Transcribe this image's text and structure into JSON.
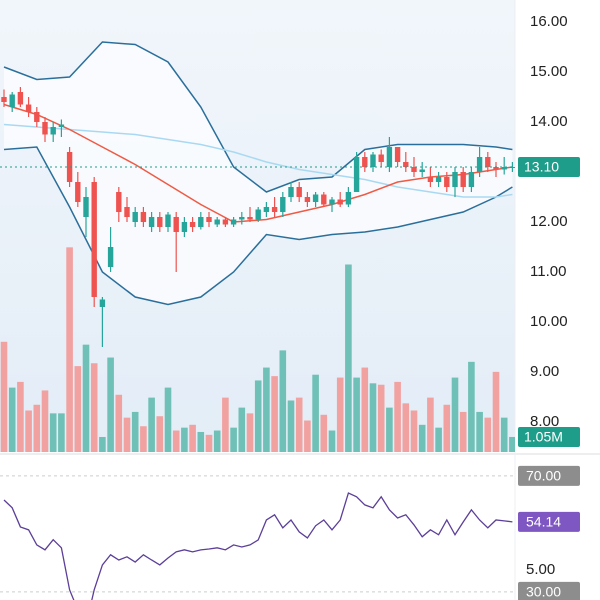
{
  "chart_data": [
    {
      "type": "candlestick",
      "ylim": [
        7.4,
        16.44
      ],
      "yticks": [
        {
          "value": 16,
          "label": "16.00"
        },
        {
          "value": 15,
          "label": "15.00"
        },
        {
          "value": 14,
          "label": "14.00"
        },
        {
          "value": 12,
          "label": "12.00"
        },
        {
          "value": 11,
          "label": "11.00"
        },
        {
          "value": 10,
          "label": "10.00"
        },
        {
          "value": 9,
          "label": "9.00"
        },
        {
          "value": 8,
          "label": "8.00"
        }
      ],
      "up_color": "#26a69a",
      "down_color": "#ef5350",
      "ohlc": [
        [
          14.5,
          14.65,
          14.3,
          14.4
        ],
        [
          14.3,
          14.6,
          14.2,
          14.55
        ],
        [
          14.6,
          14.7,
          14.3,
          14.35
        ],
        [
          14.35,
          14.5,
          14.1,
          14.2
        ],
        [
          14.2,
          14.3,
          13.9,
          14.0
        ],
        [
          14.0,
          14.1,
          13.6,
          13.75
        ],
        [
          13.75,
          14.0,
          13.6,
          13.9
        ],
        [
          13.9,
          14.05,
          13.7,
          13.95
        ],
        [
          13.4,
          13.5,
          12.7,
          12.8
        ],
        [
          12.8,
          13.0,
          12.3,
          12.4
        ],
        [
          12.1,
          12.7,
          11.7,
          12.5
        ],
        [
          12.8,
          12.9,
          10.3,
          10.5
        ],
        [
          10.3,
          10.5,
          9.5,
          10.45
        ],
        [
          11.1,
          11.9,
          11.0,
          11.5
        ],
        [
          12.6,
          12.7,
          12.0,
          12.2
        ],
        [
          12.3,
          12.5,
          12.0,
          12.1
        ],
        [
          12.0,
          12.3,
          11.9,
          12.2
        ],
        [
          12.2,
          12.3,
          11.9,
          12.0
        ],
        [
          11.9,
          12.2,
          11.8,
          12.1
        ],
        [
          12.1,
          12.2,
          11.8,
          11.9
        ],
        [
          11.9,
          12.2,
          11.8,
          12.15
        ],
        [
          12.1,
          12.2,
          11.0,
          11.8
        ],
        [
          11.8,
          12.1,
          11.7,
          12.0
        ],
        [
          12.0,
          12.1,
          11.8,
          11.9
        ],
        [
          11.9,
          12.2,
          11.85,
          12.1
        ],
        [
          12.1,
          12.2,
          11.9,
          12.0
        ],
        [
          11.95,
          12.1,
          11.9,
          12.05
        ],
        [
          12.05,
          12.1,
          11.9,
          11.95
        ],
        [
          11.95,
          12.1,
          11.9,
          12.05
        ],
        [
          12.05,
          12.2,
          11.95,
          12.1
        ],
        [
          12.1,
          12.3,
          12.0,
          12.05
        ],
        [
          12.05,
          12.3,
          12.0,
          12.25
        ],
        [
          12.2,
          12.4,
          12.1,
          12.3
        ],
        [
          12.3,
          12.5,
          12.1,
          12.2
        ],
        [
          12.2,
          12.6,
          12.1,
          12.5
        ],
        [
          12.5,
          12.8,
          12.4,
          12.7
        ],
        [
          12.7,
          12.8,
          12.4,
          12.5
        ],
        [
          12.5,
          12.6,
          12.3,
          12.4
        ],
        [
          12.4,
          12.6,
          12.3,
          12.55
        ],
        [
          12.55,
          12.6,
          12.3,
          12.35
        ],
        [
          12.35,
          12.5,
          12.2,
          12.45
        ],
        [
          12.45,
          12.6,
          12.3,
          12.35
        ],
        [
          12.35,
          12.7,
          12.3,
          12.6
        ],
        [
          12.6,
          13.4,
          12.6,
          13.3
        ],
        [
          13.3,
          13.4,
          13.0,
          13.1
        ],
        [
          13.1,
          13.4,
          13.0,
          13.35
        ],
        [
          13.35,
          13.45,
          13.1,
          13.2
        ],
        [
          13.1,
          13.7,
          13.0,
          13.5
        ],
        [
          13.5,
          13.5,
          13.1,
          13.2
        ],
        [
          13.2,
          13.4,
          13.0,
          13.1
        ],
        [
          13.1,
          13.3,
          12.9,
          13.0
        ],
        [
          13.0,
          13.2,
          12.9,
          13.05
        ],
        [
          12.9,
          13.1,
          12.7,
          12.8
        ],
        [
          12.8,
          13.0,
          12.7,
          12.9
        ],
        [
          12.9,
          13.0,
          12.6,
          12.7
        ],
        [
          12.7,
          13.1,
          12.5,
          13.0
        ],
        [
          13.0,
          13.1,
          12.6,
          12.7
        ],
        [
          12.7,
          13.1,
          12.6,
          13.0
        ],
        [
          13.0,
          13.5,
          12.9,
          13.3
        ],
        [
          13.3,
          13.4,
          13.0,
          13.1
        ],
        [
          13.1,
          13.2,
          12.9,
          13.05
        ],
        [
          13.05,
          13.3,
          12.95,
          13.1
        ],
        [
          13.1,
          13.2,
          13.0,
          13.1
        ]
      ],
      "line_x": [
        0,
        4,
        8,
        12,
        16,
        20,
        24,
        28,
        32,
        36,
        40,
        44,
        48,
        52,
        56,
        60,
        62
      ],
      "lines": [
        {
          "color": "#2a6f9b",
          "values": [
            15.1,
            14.85,
            14.9,
            15.6,
            15.55,
            15.2,
            14.3,
            13.1,
            12.6,
            12.85,
            12.9,
            13.45,
            13.55,
            13.55,
            13.55,
            13.5,
            13.45
          ]
        },
        {
          "color": "#2a6f9b",
          "values": [
            13.45,
            13.5,
            12.3,
            11.0,
            10.5,
            10.35,
            10.5,
            11.0,
            11.75,
            11.65,
            11.75,
            11.8,
            11.9,
            12.05,
            12.2,
            12.5,
            12.7
          ]
        },
        {
          "color": "#a9d9f2",
          "values": [
            13.95,
            13.9,
            13.85,
            13.8,
            13.75,
            13.65,
            13.55,
            13.4,
            13.2,
            13.05,
            12.95,
            12.85,
            12.7,
            12.6,
            12.5,
            12.5,
            12.55
          ]
        },
        {
          "color": "#ef5a45",
          "values": [
            14.35,
            14.15,
            13.85,
            13.5,
            13.15,
            12.75,
            12.35,
            12.0,
            12.05,
            12.2,
            12.35,
            12.55,
            12.8,
            12.9,
            12.95,
            13.05,
            13.1
          ]
        }
      ],
      "last_price": {
        "value": 13.1,
        "label": "13.10"
      },
      "tag_color": "#1e9e8a"
    },
    {
      "type": "bar",
      "ylim": [
        0,
        16
      ],
      "up_color": "#6fc0b6",
      "down_color": "#f1a1a0",
      "values": [
        7.7,
        4.5,
        4.9,
        2.9,
        3.3,
        4.3,
        2.7,
        2.7,
        14.3,
        6.0,
        7.5,
        6.2,
        1.05,
        6.6,
        4.0,
        2.4,
        2.8,
        1.8,
        3.8,
        2.5,
        4.5,
        1.5,
        1.7,
        1.9,
        1.4,
        1.2,
        1.5,
        3.8,
        1.7,
        3.1,
        2.7,
        5.0,
        5.9,
        5.3,
        7.1,
        3.6,
        3.8,
        2.2,
        5.4,
        2.6,
        1.5,
        5.2,
        13.1,
        5.2,
        5.9,
        4.8,
        4.7,
        3.1,
        4.9,
        3.4,
        2.9,
        1.9,
        3.8,
        1.7,
        3.3,
        5.2,
        2.8,
        6.3,
        2.8,
        2.4,
        5.6,
        2.4,
        1.05
      ],
      "last_value_label": "1.05M",
      "tag_color": "#1e9e8a"
    },
    {
      "type": "line",
      "ylim": [
        27.2,
        74.8
      ],
      "yticks": [
        {
          "value": 70,
          "label": "70.00"
        },
        {
          "value": 30,
          "label": "30.00"
        }
      ],
      "color": "#5b3f98",
      "tag_color": "#7e57c2",
      "values": [
        61.7,
        59,
        52.4,
        51.4,
        46.2,
        44.5,
        48,
        45.2,
        30.7,
        23.8,
        18.6,
        30.7,
        39.3,
        42.8,
        41,
        42.1,
        40.3,
        42.8,
        41,
        39.3,
        41.7,
        43.8,
        44.5,
        43.8,
        44.5,
        44.8,
        45.2,
        44.5,
        46.2,
        45.5,
        46.2,
        47.9,
        54.8,
        56.6,
        52.1,
        54.8,
        50.7,
        48.6,
        52.8,
        54.8,
        51.4,
        54.8,
        64.1,
        62.8,
        60,
        59,
        62.8,
        58.3,
        55.5,
        56.6,
        53.1,
        49,
        51.4,
        49.7,
        54.8,
        49.7,
        54.1,
        58.3,
        54.8,
        52.1,
        54.8,
        54.5,
        54.14
      ],
      "clipped_label": "5.00"
    }
  ]
}
